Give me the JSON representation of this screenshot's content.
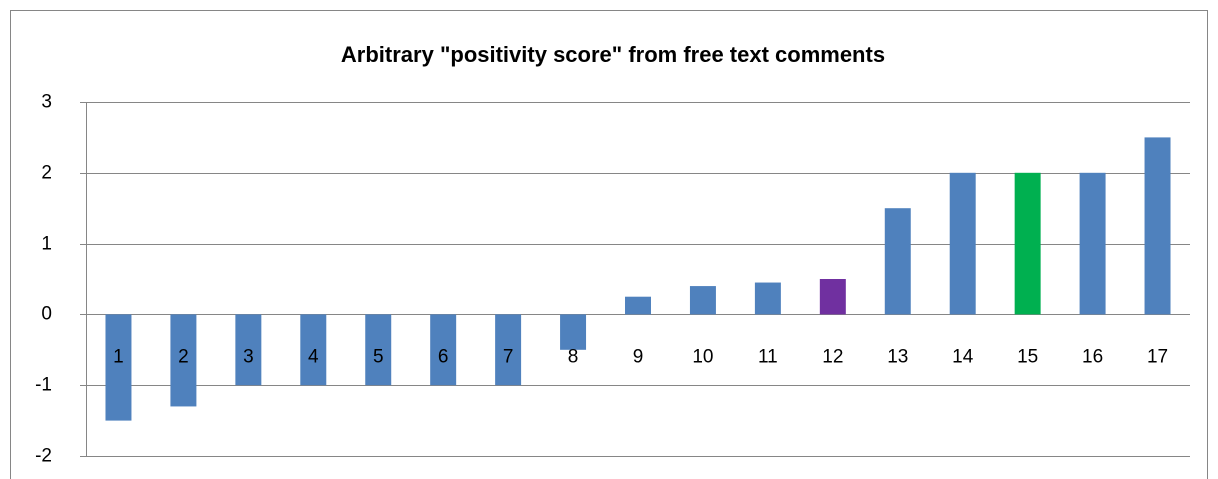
{
  "chart_data": {
    "type": "bar",
    "title": "Arbitrary \"positivity score\" from free  text comments",
    "categories": [
      "1",
      "2",
      "3",
      "4",
      "5",
      "6",
      "7",
      "8",
      "9",
      "10",
      "11",
      "12",
      "13",
      "14",
      "15",
      "16",
      "17"
    ],
    "values": [
      -1.5,
      -1.3,
      -1,
      -1,
      -1,
      -1,
      -1,
      -0.5,
      0.25,
      0.4,
      0.45,
      0.5,
      1.5,
      2,
      2,
      2,
      2.5
    ],
    "colors": [
      "#4f81bd",
      "#4f81bd",
      "#4f81bd",
      "#4f81bd",
      "#4f81bd",
      "#4f81bd",
      "#4f81bd",
      "#4f81bd",
      "#4f81bd",
      "#4f81bd",
      "#4f81bd",
      "#7030a0",
      "#4f81bd",
      "#4f81bd",
      "#00b050",
      "#4f81bd",
      "#4f81bd"
    ],
    "ylim": [
      -2,
      3
    ],
    "yticks": [
      -2,
      -1,
      0,
      1,
      2,
      3
    ],
    "grid": true
  }
}
